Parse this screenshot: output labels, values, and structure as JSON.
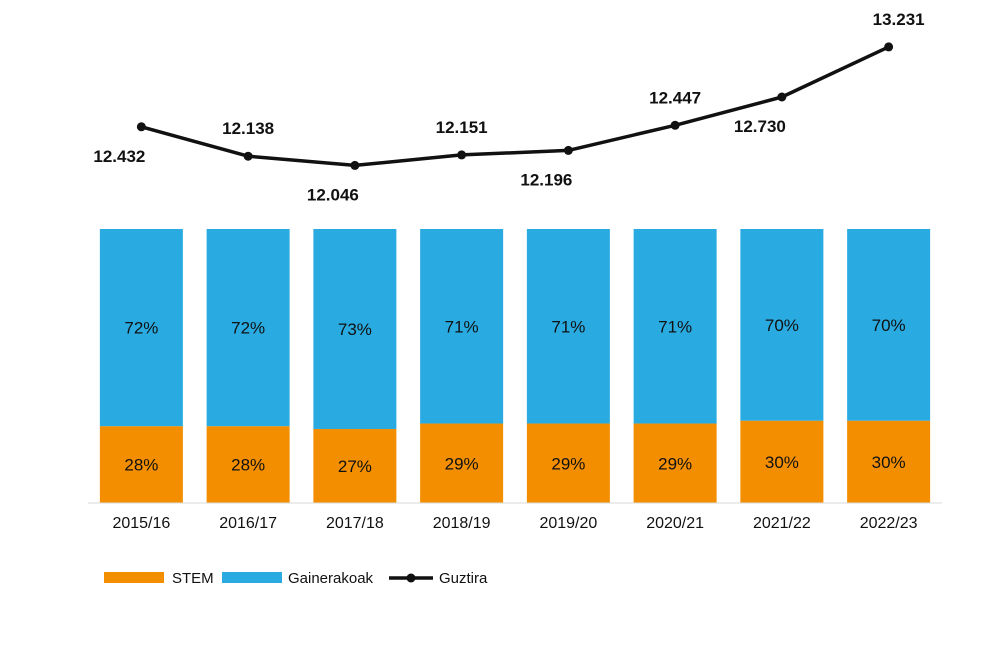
{
  "chart_data": {
    "type": "bar",
    "stacked": "percent",
    "categories": [
      "2015/16",
      "2016/17",
      "2017/18",
      "2018/19",
      "2019/20",
      "2020/21",
      "2021/22",
      "2022/23"
    ],
    "series": [
      {
        "name": "STEM",
        "color": "#f28e00",
        "values": [
          28,
          28,
          27,
          29,
          29,
          29,
          30,
          30
        ],
        "labels": [
          "28%",
          "28%",
          "27%",
          "29%",
          "29%",
          "29%",
          "30%",
          "30%"
        ]
      },
      {
        "name": "Gainerakoak",
        "color": "#29abe2",
        "values": [
          72,
          72,
          73,
          71,
          71,
          71,
          70,
          70
        ],
        "labels": [
          "72%",
          "72%",
          "73%",
          "71%",
          "71%",
          "71%",
          "70%",
          "70%"
        ]
      }
    ],
    "line": {
      "name": "Guztira",
      "color": "#111111",
      "values": [
        12432,
        12138,
        12046,
        12151,
        12196,
        12447,
        12730,
        13231
      ],
      "labels": [
        "12.432",
        "12.138",
        "12.046",
        "12.151",
        "12.196",
        "12.447",
        "12.730",
        "13.231"
      ]
    },
    "legend": "bottom-left",
    "grid": false
  }
}
